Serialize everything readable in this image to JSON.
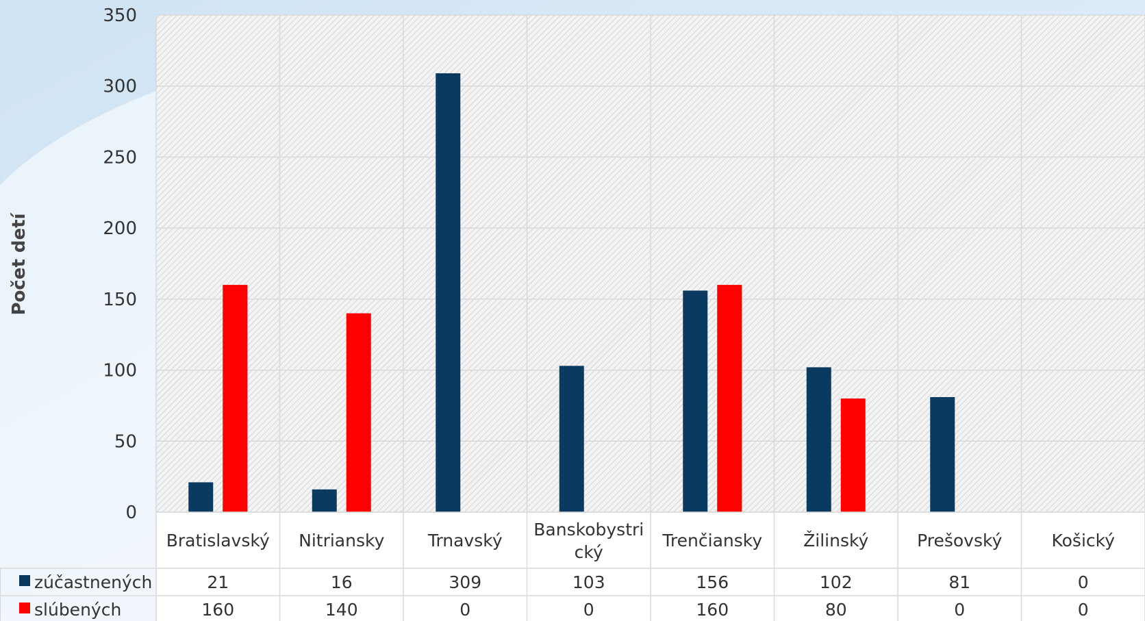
{
  "chart_data": {
    "type": "bar",
    "ylabel": "Počet detí",
    "xlabel": "",
    "ylim": [
      0,
      350
    ],
    "yticks": [
      0,
      50,
      100,
      150,
      200,
      250,
      300,
      350
    ],
    "grid": true,
    "legend": "data-table-left",
    "categories": [
      [
        "Bratislavský"
      ],
      [
        "Nitriansky"
      ],
      [
        "Trnavský"
      ],
      [
        "Banskobystri",
        "cký"
      ],
      [
        "Trenčiansky"
      ],
      [
        "Žilinský"
      ],
      [
        "Prešovský"
      ],
      [
        "Košický"
      ]
    ],
    "series": [
      {
        "name": "zúčastnených",
        "color": "#0b3a61",
        "values": [
          21,
          16,
          309,
          103,
          156,
          102,
          81,
          0
        ]
      },
      {
        "name": "slúbených",
        "color": "#ff0000",
        "values": [
          160,
          140,
          0,
          0,
          160,
          80,
          0,
          0
        ]
      }
    ]
  }
}
